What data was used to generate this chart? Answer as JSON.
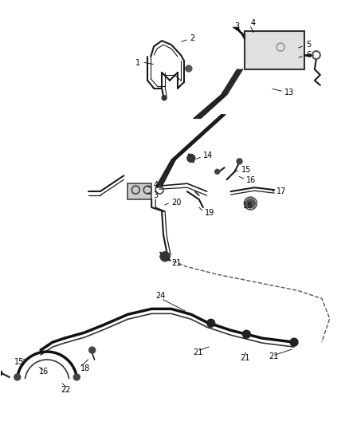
{
  "background_color": "#ffffff",
  "fig_width": 4.38,
  "fig_height": 5.33,
  "dpi": 100,
  "line_color": "#1a1a1a",
  "label_color": "#000000",
  "label_fontsize": 7.0
}
